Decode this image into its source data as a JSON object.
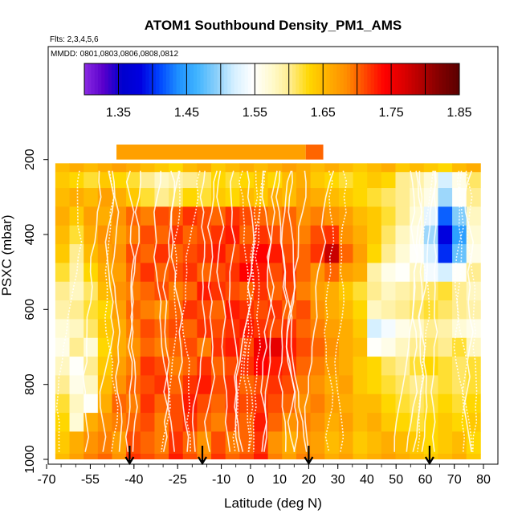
{
  "chart_data": {
    "type": "heatmap",
    "title": "ATOM1 Southbound Density_PM1_AMS",
    "flights_note": "Flts: 2,3,4,5,6",
    "dates_note": "MMDD: 0801,0803,0806,0808,0812",
    "xlabel": "Latitude (deg N)",
    "ylabel": "PSXC (mbar)",
    "xlim": [
      -70,
      80
    ],
    "ylim": [
      1000,
      100
    ],
    "x_tick_labels": [
      "-70",
      "-55",
      "-40",
      "-25",
      "-10",
      "0",
      "10",
      "20",
      "30",
      "40",
      "50",
      "60",
      "70",
      "80"
    ],
    "y_tick_labels": [
      "200",
      "400",
      "600",
      "800",
      "1000"
    ],
    "colorbar": {
      "range": [
        1.3,
        1.85
      ],
      "tick_labels": [
        "1.35",
        "1.45",
        "1.55",
        "1.65",
        "1.75",
        "1.85"
      ],
      "colors": [
        "#8a2be2",
        "#5a00cc",
        "#0000cd",
        "#0000e0",
        "#0045ff",
        "#1e90ff",
        "#40b4ff",
        "#87cefa",
        "#d6f0ff",
        "#ffffff",
        "#fffacd",
        "#ffec8b",
        "#ffd700",
        "#ffb000",
        "#ff8c00",
        "#ff4500",
        "#ff0000",
        "#dd0000",
        "#b00000",
        "#800000",
        "#5a0000"
      ]
    },
    "arrow_latitudes": [
      -41.5,
      -16.5,
      20,
      61.5
    ],
    "pressure_levels": [
      950,
      900,
      850,
      800,
      750,
      700,
      650,
      600,
      550,
      500,
      450,
      400,
      350,
      300,
      250,
      215
    ],
    "density_grid": [
      [
        1.64,
        1.66,
        1.68,
        1.69,
        1.67,
        1.71,
        1.7,
        1.69,
        1.72,
        1.7,
        1.68,
        1.71,
        1.69,
        1.7,
        1.72,
        1.68,
        1.66,
        1.68,
        1.67,
        1.65,
        1.66,
        1.64,
        1.65,
        1.66,
        1.65,
        1.64,
        1.63,
        1.64,
        1.65,
        1.63
      ],
      [
        1.63,
        1.57,
        1.66,
        1.68,
        1.69,
        1.7,
        1.71,
        1.69,
        1.71,
        1.72,
        1.7,
        1.69,
        1.71,
        1.7,
        1.73,
        1.7,
        1.68,
        1.69,
        1.68,
        1.66,
        1.67,
        1.65,
        1.66,
        1.64,
        1.63,
        1.62,
        1.63,
        1.64,
        1.63,
        1.64
      ],
      [
        1.62,
        1.58,
        1.55,
        1.66,
        1.7,
        1.69,
        1.72,
        1.7,
        1.71,
        1.73,
        1.71,
        1.7,
        1.72,
        1.71,
        1.72,
        1.71,
        1.7,
        1.68,
        1.69,
        1.67,
        1.66,
        1.65,
        1.65,
        1.63,
        1.62,
        1.61,
        1.62,
        1.63,
        1.62,
        1.63
      ],
      [
        1.6,
        1.56,
        1.58,
        1.65,
        1.68,
        1.7,
        1.71,
        1.72,
        1.7,
        1.72,
        1.73,
        1.71,
        1.72,
        1.7,
        1.71,
        1.72,
        1.71,
        1.69,
        1.68,
        1.66,
        1.67,
        1.64,
        1.63,
        1.62,
        1.61,
        1.6,
        1.61,
        1.62,
        1.61,
        1.62
      ],
      [
        1.58,
        1.55,
        1.6,
        1.64,
        1.67,
        1.69,
        1.72,
        1.71,
        1.69,
        1.7,
        1.72,
        1.7,
        1.71,
        1.72,
        1.74,
        1.73,
        1.72,
        1.7,
        1.69,
        1.67,
        1.66,
        1.64,
        1.63,
        1.61,
        1.6,
        1.62,
        1.63,
        1.62,
        1.61,
        1.62
      ],
      [
        1.56,
        1.6,
        1.57,
        1.63,
        1.66,
        1.68,
        1.7,
        1.69,
        1.7,
        1.71,
        1.69,
        1.72,
        1.73,
        1.71,
        1.75,
        1.76,
        1.73,
        1.71,
        1.7,
        1.68,
        1.66,
        1.65,
        1.55,
        1.56,
        1.58,
        1.6,
        1.61,
        1.6,
        1.62,
        1.58
      ],
      [
        1.57,
        1.58,
        1.61,
        1.64,
        1.66,
        1.69,
        1.71,
        1.7,
        1.71,
        1.7,
        1.72,
        1.71,
        1.72,
        1.73,
        1.72,
        1.71,
        1.72,
        1.7,
        1.69,
        1.67,
        1.66,
        1.64,
        1.52,
        1.54,
        1.56,
        1.58,
        1.6,
        1.59,
        1.57,
        1.56
      ],
      [
        1.59,
        1.6,
        1.62,
        1.63,
        1.67,
        1.7,
        1.69,
        1.68,
        1.7,
        1.72,
        1.71,
        1.7,
        1.73,
        1.72,
        1.71,
        1.72,
        1.7,
        1.71,
        1.68,
        1.66,
        1.65,
        1.63,
        1.58,
        1.59,
        1.6,
        1.61,
        1.62,
        1.61,
        1.6,
        1.59
      ],
      [
        1.6,
        1.58,
        1.61,
        1.65,
        1.68,
        1.69,
        1.7,
        1.71,
        1.69,
        1.7,
        1.73,
        1.72,
        1.71,
        1.7,
        1.72,
        1.7,
        1.71,
        1.69,
        1.67,
        1.66,
        1.64,
        1.62,
        1.6,
        1.58,
        1.59,
        1.6,
        1.61,
        1.62,
        1.6,
        1.58
      ],
      [
        1.62,
        1.59,
        1.63,
        1.66,
        1.67,
        1.7,
        1.72,
        1.7,
        1.71,
        1.72,
        1.7,
        1.71,
        1.72,
        1.74,
        1.73,
        1.71,
        1.72,
        1.7,
        1.68,
        1.7,
        1.67,
        1.66,
        1.59,
        1.56,
        1.55,
        1.58,
        1.54,
        1.52,
        1.55,
        1.6
      ],
      [
        1.64,
        1.6,
        1.65,
        1.67,
        1.68,
        1.71,
        1.7,
        1.72,
        1.7,
        1.71,
        1.72,
        1.73,
        1.71,
        1.72,
        1.74,
        1.73,
        1.71,
        1.7,
        1.72,
        1.78,
        1.7,
        1.67,
        1.63,
        1.6,
        1.57,
        1.55,
        1.52,
        1.4,
        1.48,
        1.56
      ],
      [
        1.65,
        1.62,
        1.66,
        1.68,
        1.67,
        1.69,
        1.71,
        1.7,
        1.72,
        1.7,
        1.71,
        1.72,
        1.73,
        1.7,
        1.72,
        1.71,
        1.7,
        1.69,
        1.71,
        1.72,
        1.68,
        1.66,
        1.64,
        1.61,
        1.58,
        1.56,
        1.5,
        1.38,
        1.45,
        1.57
      ],
      [
        1.66,
        1.64,
        1.67,
        1.66,
        1.68,
        1.7,
        1.69,
        1.71,
        1.7,
        1.72,
        1.71,
        1.7,
        1.72,
        1.71,
        1.7,
        1.69,
        1.7,
        1.68,
        1.69,
        1.68,
        1.67,
        1.65,
        1.64,
        1.62,
        1.6,
        1.57,
        1.53,
        1.42,
        1.49,
        1.58
      ],
      [
        1.65,
        1.66,
        1.65,
        1.67,
        1.66,
        1.64,
        1.62,
        1.6,
        1.61,
        1.63,
        1.62,
        1.64,
        1.63,
        1.65,
        1.64,
        1.66,
        1.65,
        1.67,
        1.66,
        1.65,
        1.64,
        1.63,
        1.62,
        1.61,
        1.6,
        1.58,
        1.56,
        1.5,
        1.55,
        1.6
      ],
      [
        1.64,
        1.63,
        1.62,
        1.64,
        1.63,
        1.62,
        1.6,
        1.58,
        1.59,
        1.6,
        1.61,
        1.63,
        1.62,
        1.63,
        1.64,
        1.63,
        1.65,
        1.66,
        1.64,
        1.63,
        1.62,
        1.63,
        1.64,
        1.63,
        1.6,
        1.59,
        1.57,
        1.52,
        1.56,
        1.61
      ],
      [
        1.65,
        1.66,
        1.65,
        1.66,
        1.67,
        1.66,
        1.65,
        1.64,
        1.63,
        1.65,
        1.66,
        1.64,
        1.65,
        1.66,
        1.65,
        1.66,
        1.67,
        1.66,
        1.65,
        1.66,
        1.65,
        1.64,
        1.65,
        1.66,
        1.64,
        1.65,
        1.64,
        1.63,
        1.65,
        1.66
      ]
    ],
    "top_band": {
      "lat_range": [
        -46,
        19
      ],
      "pressure_top": 160,
      "pressure_bottom": 200,
      "value": 1.67
    },
    "top_band_right": {
      "lat_range": [
        19,
        25
      ],
      "pressure_top": 160,
      "pressure_bottom": 200,
      "value": 1.7
    }
  }
}
